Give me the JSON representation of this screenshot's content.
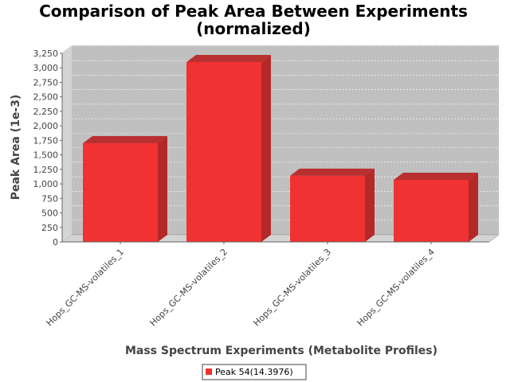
{
  "chart_data": {
    "type": "bar",
    "title_lines": [
      "Comparison of Peak Area Between Experiments",
      "(normalized)"
    ],
    "xlabel": "Mass Spectrum Experiments (Metabolite Profiles)",
    "ylabel": "Peak Area (1e-3)",
    "categories": [
      "Hops_GC-MS-volatiles_1",
      "Hops_GC-MS-volatiles_2",
      "Hops_GC-MS-volatiles_3",
      "Hops_GC-MS-volatiles_4"
    ],
    "series": [
      {
        "name": "Peak 54(14.3976)",
        "values": [
          1700,
          3100,
          1140,
          1070
        ]
      }
    ],
    "ylim": [
      0,
      3250
    ],
    "yticks": [
      "0",
      "250",
      "500",
      "750",
      "1,000",
      "1,250",
      "1,500",
      "1,750",
      "2,000",
      "2,250",
      "2,500",
      "2,750",
      "3,000",
      "3,250"
    ],
    "ytick_values": [
      0,
      250,
      500,
      750,
      1000,
      1250,
      1500,
      1750,
      2000,
      2250,
      2500,
      2750,
      3000,
      3250
    ],
    "grid": true,
    "legend_position": "bottom",
    "colors": {
      "bar_front": "#f03232",
      "bar_side": "#b42828",
      "bar_top": "#b83030",
      "plot_bg": "#c0c0c0",
      "plot_wall": "#d4d4d4",
      "grid": "#ffffff"
    }
  }
}
